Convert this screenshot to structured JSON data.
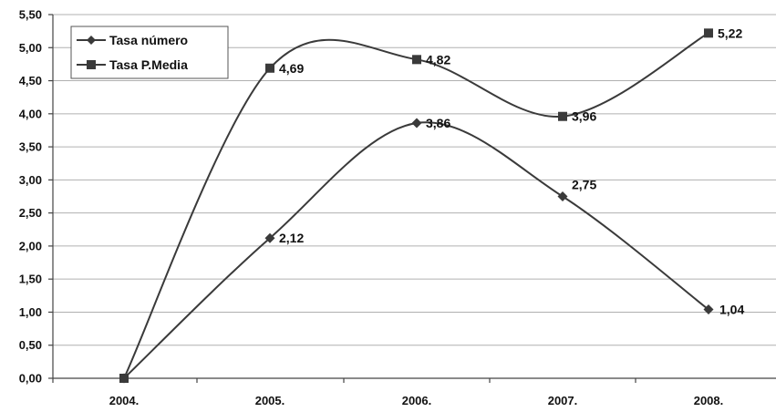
{
  "chart_data": {
    "type": "line",
    "categories": [
      "2004.",
      "2005.",
      "2006.",
      "2007.",
      "2008."
    ],
    "series": [
      {
        "name": "Tasa número",
        "marker": "diamond",
        "values": [
          0,
          2.12,
          3.86,
          2.75,
          1.04
        ],
        "labels": [
          "",
          "2,12",
          "3,86",
          "2,75",
          "1,04"
        ]
      },
      {
        "name": "Tasa P.Media",
        "marker": "square",
        "values": [
          0,
          4.69,
          4.82,
          3.96,
          5.22
        ],
        "labels": [
          "",
          "4,69",
          "4,82",
          "3,96",
          "5,22"
        ]
      }
    ],
    "ylim": [
      0,
      5.5
    ],
    "ytick_labels": [
      "0,00",
      "0,50",
      "1,00",
      "1,50",
      "2,00",
      "2,50",
      "3,00",
      "3,50",
      "4,00",
      "4,50",
      "5,00",
      "5,50"
    ],
    "grid": true,
    "legend": "top-left",
    "colors": {
      "series": "#3a3a3a",
      "grid": "#b0b0b0"
    }
  }
}
